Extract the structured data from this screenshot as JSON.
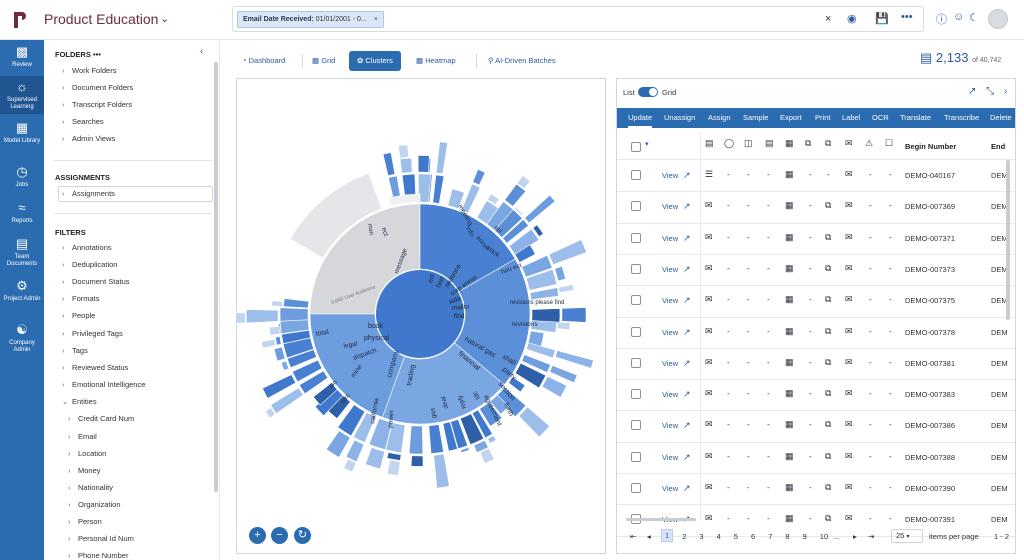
{
  "header": {
    "app_title": "Product Education",
    "search_chip_label": "Email Date Received:",
    "search_chip_value": "01/01/2001 - 0...",
    "chip_close": "×",
    "clear": "×"
  },
  "rail": {
    "items": [
      {
        "label": "Review",
        "icon": "bar-chart-icon"
      },
      {
        "label": "Supervised Learning",
        "icon": "lightbulb-icon"
      },
      {
        "label": "Model Library",
        "icon": "books-icon"
      },
      {
        "label": "Jobs",
        "icon": "clock-icon"
      },
      {
        "label": "Reports",
        "icon": "line-chart-icon"
      },
      {
        "label": "Team Documents",
        "icon": "document-icon"
      },
      {
        "label": "Project Admin",
        "icon": "gear-icon"
      },
      {
        "label": "Company Admin",
        "icon": "team-icon"
      }
    ]
  },
  "folders": {
    "title": "FOLDERS",
    "more": "•••",
    "items": [
      "Work Folders",
      "Document Folders",
      "Transcript Folders",
      "Searches",
      "Admin Views"
    ]
  },
  "assignments": {
    "title": "ASSIGNMENTS",
    "items": [
      "Assignments"
    ]
  },
  "filters": {
    "title": "FILTERS",
    "items": [
      "Annotations",
      "Deduplication",
      "Document Status",
      "Formats",
      "People",
      "Privileged Tags",
      "Tags",
      "Reviewed Status",
      "Emotional Intelligence",
      "Entities"
    ],
    "entities": [
      "Credit Card Num",
      "Email",
      "Location",
      "Money",
      "Nationality",
      "Organization",
      "Person",
      "Personal Id Num",
      "Phone Number"
    ]
  },
  "tabs": [
    "Dashboard",
    "Grid",
    "Clusters",
    "Heatmap",
    "AI-Driven Batches"
  ],
  "active_tab": "Clusters",
  "count": {
    "value": "2,133",
    "total": "of 40,742"
  },
  "cluster": {
    "center_terms": [
      "ect",
      "hou",
      "revisions",
      "corp enron",
      "isda",
      "mailto",
      "find"
    ],
    "labels": {
      "book": "book",
      "physical": "physical",
      "total": "total",
      "company": "company",
      "trading": "trading",
      "natural_gas": "natural gas",
      "financial": "financial",
      "shall": "shall",
      "party": "party",
      "section": "section",
      "agreement": "agreement",
      "forth": "forth",
      "revisions_please_find": "revisions please find",
      "revisions": "revisions",
      "hou_ect": "hou ect",
      "message": "message",
      "meeting": "meeting",
      "info": "info",
      "enron": "enron",
      "stack": "stack",
      "ect": "ect",
      "eol": "eol",
      "msn": "msn",
      "mine": "mine",
      "california": "california",
      "power": "power",
      "gas": "gas",
      "deal": "deal",
      "iso": "iso",
      "ferc": "ferc",
      "reply": "reply",
      "ldc": "ldc",
      "dispatch": "dispatch",
      "legal": "legal",
      "user_audience": "5,062 User Audience"
    }
  },
  "grid": {
    "toggle_list": "List",
    "toggle_grid": "Grid",
    "actions": [
      "Update",
      "Unassign",
      "Assign",
      "Sample",
      "Export",
      "Print",
      "Label",
      "OCR",
      "Translate",
      "Transcribe",
      "Delete"
    ],
    "col_begin": "Begin Number",
    "col_end": "End",
    "view_label": "View",
    "dash": "-",
    "end_prefix": "DEM",
    "rows": [
      "DEMO-040167",
      "DEMO-007369",
      "DEMO-007371",
      "DEMO-007373",
      "DEMO-007375",
      "DEMO-007378",
      "DEMO-007381",
      "DEMO-007383",
      "DEMO-007386",
      "DEMO-007388",
      "DEMO-007390",
      "DEMO-007391"
    ],
    "pages": [
      "1",
      "2",
      "3",
      "4",
      "5",
      "6",
      "7",
      "8",
      "9",
      "10"
    ],
    "current_page": "1",
    "ellipsis": "...",
    "per_page": "25",
    "per_page_label": "items per page",
    "range": "1 - 2"
  }
}
